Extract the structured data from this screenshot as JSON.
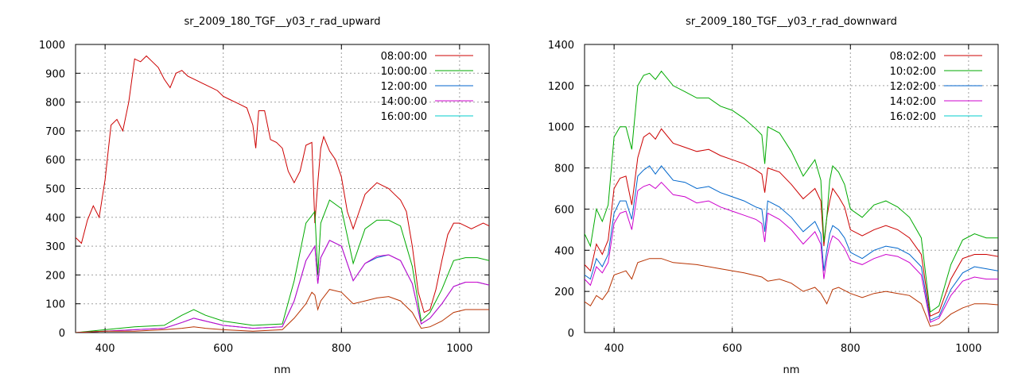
{
  "chart_data": [
    {
      "type": "line",
      "title": "sr_2009_180_TGF__y03_r_rad_upward",
      "xlabel": "nm",
      "ylabel": "",
      "xlim": [
        350,
        1050
      ],
      "ylim": [
        0,
        1000
      ],
      "xticks": [
        400,
        600,
        800,
        1000
      ],
      "yticks": [
        0,
        100,
        200,
        300,
        400,
        500,
        600,
        700,
        800,
        900,
        1000
      ],
      "grid": true,
      "legend_position": "top-right",
      "series": [
        {
          "name": "08:00:00",
          "color": "#cc0000",
          "x": [
            350,
            360,
            370,
            380,
            390,
            400,
            410,
            420,
            430,
            440,
            450,
            460,
            470,
            480,
            490,
            500,
            510,
            520,
            530,
            540,
            550,
            560,
            570,
            580,
            590,
            600,
            610,
            620,
            630,
            640,
            650,
            655,
            660,
            670,
            680,
            690,
            700,
            710,
            720,
            730,
            740,
            750,
            755,
            760,
            765,
            770,
            780,
            790,
            800,
            810,
            820,
            830,
            840,
            850,
            860,
            870,
            880,
            890,
            900,
            910,
            920,
            930,
            940,
            950,
            960,
            970,
            980,
            990,
            1000,
            1010,
            1020,
            1030,
            1040,
            1050
          ],
          "values": [
            330,
            310,
            390,
            440,
            400,
            530,
            720,
            740,
            700,
            800,
            950,
            940,
            960,
            940,
            920,
            880,
            850,
            900,
            910,
            890,
            880,
            870,
            860,
            850,
            840,
            820,
            810,
            800,
            790,
            780,
            720,
            640,
            770,
            770,
            670,
            660,
            640,
            560,
            520,
            560,
            650,
            660,
            380,
            520,
            640,
            680,
            630,
            600,
            540,
            420,
            360,
            420,
            480,
            500,
            520,
            510,
            500,
            480,
            460,
            420,
            300,
            140,
            70,
            80,
            150,
            250,
            340,
            380,
            380,
            370,
            360,
            370,
            380,
            370
          ]
        },
        {
          "name": "10:00:00",
          "color": "#00aa00",
          "x": [
            350,
            400,
            450,
            500,
            530,
            550,
            570,
            600,
            650,
            700,
            720,
            740,
            755,
            760,
            765,
            780,
            800,
            820,
            840,
            860,
            880,
            900,
            920,
            935,
            950,
            970,
            990,
            1010,
            1030,
            1050
          ],
          "values": [
            0,
            10,
            20,
            25,
            60,
            80,
            60,
            40,
            25,
            30,
            180,
            380,
            420,
            200,
            380,
            460,
            430,
            240,
            360,
            390,
            390,
            370,
            230,
            40,
            70,
            150,
            250,
            260,
            260,
            250
          ]
        },
        {
          "name": "12:00:00",
          "color": "#0066cc",
          "x": [
            350,
            400,
            450,
            500,
            530,
            550,
            570,
            600,
            650,
            700,
            720,
            740,
            755,
            760,
            765,
            780,
            800,
            820,
            840,
            860,
            880,
            900,
            920,
            935,
            950,
            970,
            990,
            1010,
            1030,
            1050
          ],
          "values": [
            0,
            5,
            10,
            15,
            35,
            50,
            40,
            25,
            15,
            20,
            110,
            250,
            300,
            170,
            260,
            320,
            300,
            180,
            240,
            260,
            270,
            250,
            170,
            30,
            50,
            100,
            160,
            175,
            175,
            165
          ]
        },
        {
          "name": "14:00:00",
          "color": "#cc00cc",
          "x": [
            350,
            400,
            450,
            500,
            530,
            550,
            570,
            600,
            650,
            700,
            720,
            740,
            755,
            760,
            765,
            780,
            800,
            820,
            840,
            860,
            880,
            900,
            920,
            935,
            950,
            970,
            990,
            1010,
            1030,
            1050
          ],
          "values": [
            0,
            5,
            10,
            15,
            35,
            50,
            40,
            25,
            15,
            20,
            110,
            250,
            300,
            170,
            260,
            320,
            300,
            180,
            240,
            265,
            270,
            250,
            170,
            30,
            50,
            100,
            160,
            175,
            175,
            165
          ]
        },
        {
          "name": "16:00:00",
          "color": "#00cccc",
          "x": [],
          "values": []
        },
        {
          "name": "",
          "color": "#b83200",
          "x": [
            350,
            400,
            450,
            500,
            530,
            550,
            570,
            600,
            650,
            700,
            720,
            740,
            750,
            755,
            760,
            765,
            780,
            800,
            820,
            840,
            860,
            880,
            900,
            920,
            935,
            950,
            970,
            990,
            1010,
            1030,
            1050
          ],
          "values": [
            0,
            5,
            5,
            10,
            15,
            20,
            15,
            10,
            5,
            10,
            50,
            100,
            140,
            130,
            80,
            110,
            150,
            140,
            100,
            110,
            120,
            125,
            110,
            70,
            15,
            20,
            40,
            70,
            80,
            80,
            80
          ]
        }
      ]
    },
    {
      "type": "line",
      "title": "sr_2009_180_TGF__y03_r_rad_downward",
      "xlabel": "nm",
      "ylabel": "",
      "xlim": [
        350,
        1050
      ],
      "ylim": [
        0,
        1400
      ],
      "xticks": [
        400,
        600,
        800,
        1000
      ],
      "yticks": [
        0,
        200,
        400,
        600,
        800,
        1000,
        1200,
        1400
      ],
      "grid": true,
      "legend_position": "top-right",
      "series": [
        {
          "name": "08:02:00",
          "color": "#cc0000",
          "x": [
            350,
            360,
            370,
            380,
            390,
            400,
            410,
            420,
            430,
            440,
            450,
            460,
            470,
            480,
            500,
            520,
            540,
            560,
            580,
            600,
            620,
            640,
            650,
            655,
            660,
            680,
            700,
            720,
            740,
            750,
            755,
            760,
            765,
            770,
            780,
            790,
            800,
            820,
            840,
            860,
            880,
            900,
            920,
            935,
            950,
            970,
            990,
            1010,
            1030,
            1050
          ],
          "values": [
            330,
            300,
            430,
            380,
            450,
            700,
            750,
            760,
            620,
            850,
            950,
            970,
            940,
            990,
            920,
            900,
            880,
            890,
            860,
            840,
            820,
            790,
            770,
            680,
            800,
            780,
            720,
            650,
            700,
            640,
            420,
            560,
            640,
            700,
            660,
            610,
            500,
            470,
            500,
            520,
            500,
            460,
            380,
            80,
            100,
            260,
            360,
            380,
            380,
            370
          ]
        },
        {
          "name": "10:02:00",
          "color": "#00aa00",
          "x": [
            350,
            360,
            370,
            380,
            390,
            400,
            410,
            420,
            430,
            440,
            450,
            460,
            470,
            480,
            500,
            520,
            540,
            560,
            580,
            600,
            620,
            640,
            650,
            655,
            660,
            680,
            700,
            720,
            740,
            750,
            755,
            760,
            765,
            770,
            780,
            790,
            800,
            820,
            840,
            860,
            880,
            900,
            920,
            935,
            950,
            970,
            990,
            1010,
            1030,
            1050
          ],
          "values": [
            480,
            420,
            600,
            540,
            620,
            950,
            1000,
            1000,
            890,
            1200,
            1250,
            1260,
            1230,
            1270,
            1200,
            1170,
            1140,
            1140,
            1100,
            1080,
            1040,
            990,
            960,
            820,
            1000,
            970,
            880,
            760,
            840,
            740,
            440,
            560,
            740,
            810,
            780,
            720,
            600,
            560,
            620,
            640,
            610,
            560,
            460,
            100,
            130,
            330,
            450,
            480,
            460,
            460
          ]
        },
        {
          "name": "12:02:00",
          "color": "#0066cc",
          "x": [
            350,
            360,
            370,
            380,
            390,
            400,
            410,
            420,
            430,
            440,
            450,
            460,
            470,
            480,
            500,
            520,
            540,
            560,
            580,
            600,
            620,
            640,
            650,
            655,
            660,
            680,
            700,
            720,
            740,
            750,
            755,
            760,
            765,
            770,
            780,
            790,
            800,
            820,
            840,
            860,
            880,
            900,
            920,
            935,
            950,
            970,
            990,
            1010,
            1030,
            1050
          ],
          "values": [
            280,
            260,
            360,
            320,
            380,
            580,
            640,
            640,
            550,
            760,
            790,
            810,
            770,
            810,
            740,
            730,
            700,
            710,
            680,
            660,
            640,
            610,
            600,
            490,
            640,
            610,
            560,
            490,
            540,
            480,
            300,
            400,
            480,
            520,
            500,
            460,
            390,
            360,
            400,
            420,
            410,
            380,
            320,
            60,
            80,
            210,
            290,
            320,
            310,
            300
          ]
        },
        {
          "name": "14:02:00",
          "color": "#cc00cc",
          "x": [
            350,
            360,
            370,
            380,
            390,
            400,
            410,
            420,
            430,
            440,
            450,
            460,
            470,
            480,
            500,
            520,
            540,
            560,
            580,
            600,
            620,
            640,
            650,
            655,
            660,
            680,
            700,
            720,
            740,
            750,
            755,
            760,
            765,
            770,
            780,
            790,
            800,
            820,
            840,
            860,
            880,
            900,
            920,
            935,
            950,
            970,
            990,
            1010,
            1030,
            1050
          ],
          "values": [
            260,
            230,
            320,
            290,
            340,
            530,
            580,
            590,
            500,
            690,
            710,
            720,
            700,
            730,
            670,
            660,
            630,
            640,
            610,
            590,
            570,
            550,
            530,
            440,
            580,
            550,
            500,
            430,
            490,
            430,
            260,
            360,
            430,
            470,
            450,
            410,
            350,
            330,
            360,
            380,
            370,
            340,
            280,
            50,
            70,
            180,
            250,
            270,
            260,
            260
          ]
        },
        {
          "name": "16:02:00",
          "color": "#00cccc",
          "x": [],
          "values": []
        },
        {
          "name": "",
          "color": "#b83200",
          "x": [
            350,
            360,
            370,
            380,
            390,
            400,
            410,
            420,
            430,
            440,
            460,
            480,
            500,
            540,
            580,
            620,
            650,
            660,
            680,
            700,
            720,
            740,
            750,
            760,
            770,
            780,
            800,
            820,
            840,
            860,
            880,
            900,
            920,
            935,
            950,
            970,
            990,
            1010,
            1030,
            1050
          ],
          "values": [
            150,
            130,
            180,
            160,
            200,
            280,
            290,
            300,
            260,
            340,
            360,
            360,
            340,
            330,
            310,
            290,
            270,
            250,
            260,
            240,
            200,
            220,
            190,
            140,
            210,
            220,
            190,
            170,
            190,
            200,
            190,
            180,
            140,
            30,
            40,
            90,
            120,
            140,
            140,
            135
          ]
        }
      ]
    }
  ]
}
